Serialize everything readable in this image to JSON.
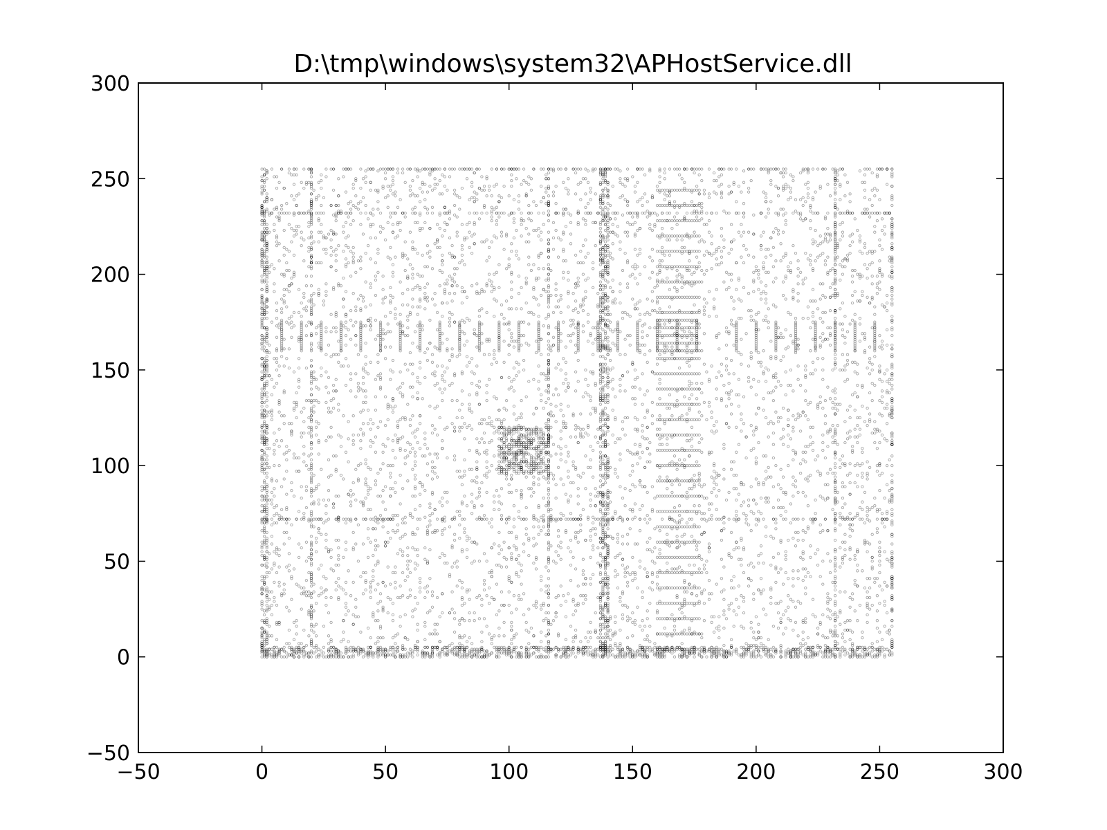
{
  "chart_data": {
    "type": "scatter",
    "title": "D:\\tmp\\windows\\system32\\APHostService.dll",
    "xlabel": "",
    "ylabel": "",
    "xlim": [
      -50,
      300
    ],
    "ylim": [
      -50,
      300
    ],
    "grid": false,
    "legend": "none",
    "x_ticks": [
      -50,
      0,
      50,
      100,
      150,
      200,
      250,
      300
    ],
    "y_ticks": [
      -50,
      0,
      50,
      100,
      150,
      200,
      250,
      300
    ],
    "x_tick_labels": [
      "−50",
      "0",
      "50",
      "100",
      "150",
      "200",
      "250",
      "300"
    ],
    "y_tick_labels": [
      "−50",
      "0",
      "50",
      "100",
      "150",
      "200",
      "250",
      "300"
    ],
    "marker_color": "#000000",
    "marker_alpha": 0.35,
    "point_domain": {
      "x": [
        0,
        255
      ],
      "y": [
        0,
        255
      ]
    },
    "dense_rows_y": [
      0,
      1,
      2,
      3,
      4,
      5,
      72,
      232,
      255
    ],
    "dense_cols_x": [
      0,
      1,
      2,
      20,
      116,
      137,
      138,
      139,
      140,
      232,
      255
    ],
    "striped_block_x": [
      160,
      177
    ],
    "striped_block_y": [
      4,
      250
    ],
    "striped_block_row_step": 8,
    "periodic_columns_x": [
      8,
      16,
      24,
      32,
      40,
      48,
      56,
      64,
      72,
      80,
      88,
      96,
      104,
      112,
      120,
      128,
      136,
      144,
      152,
      192,
      200,
      208,
      216,
      224,
      232,
      240,
      248
    ],
    "periodic_columns_y": [
      160,
      175
    ],
    "box_outline": {
      "x": [
        160,
        176
      ],
      "y": [
        160,
        176
      ]
    },
    "cluster_block": {
      "x": [
        96,
        116
      ],
      "y": [
        96,
        120
      ]
    }
  }
}
